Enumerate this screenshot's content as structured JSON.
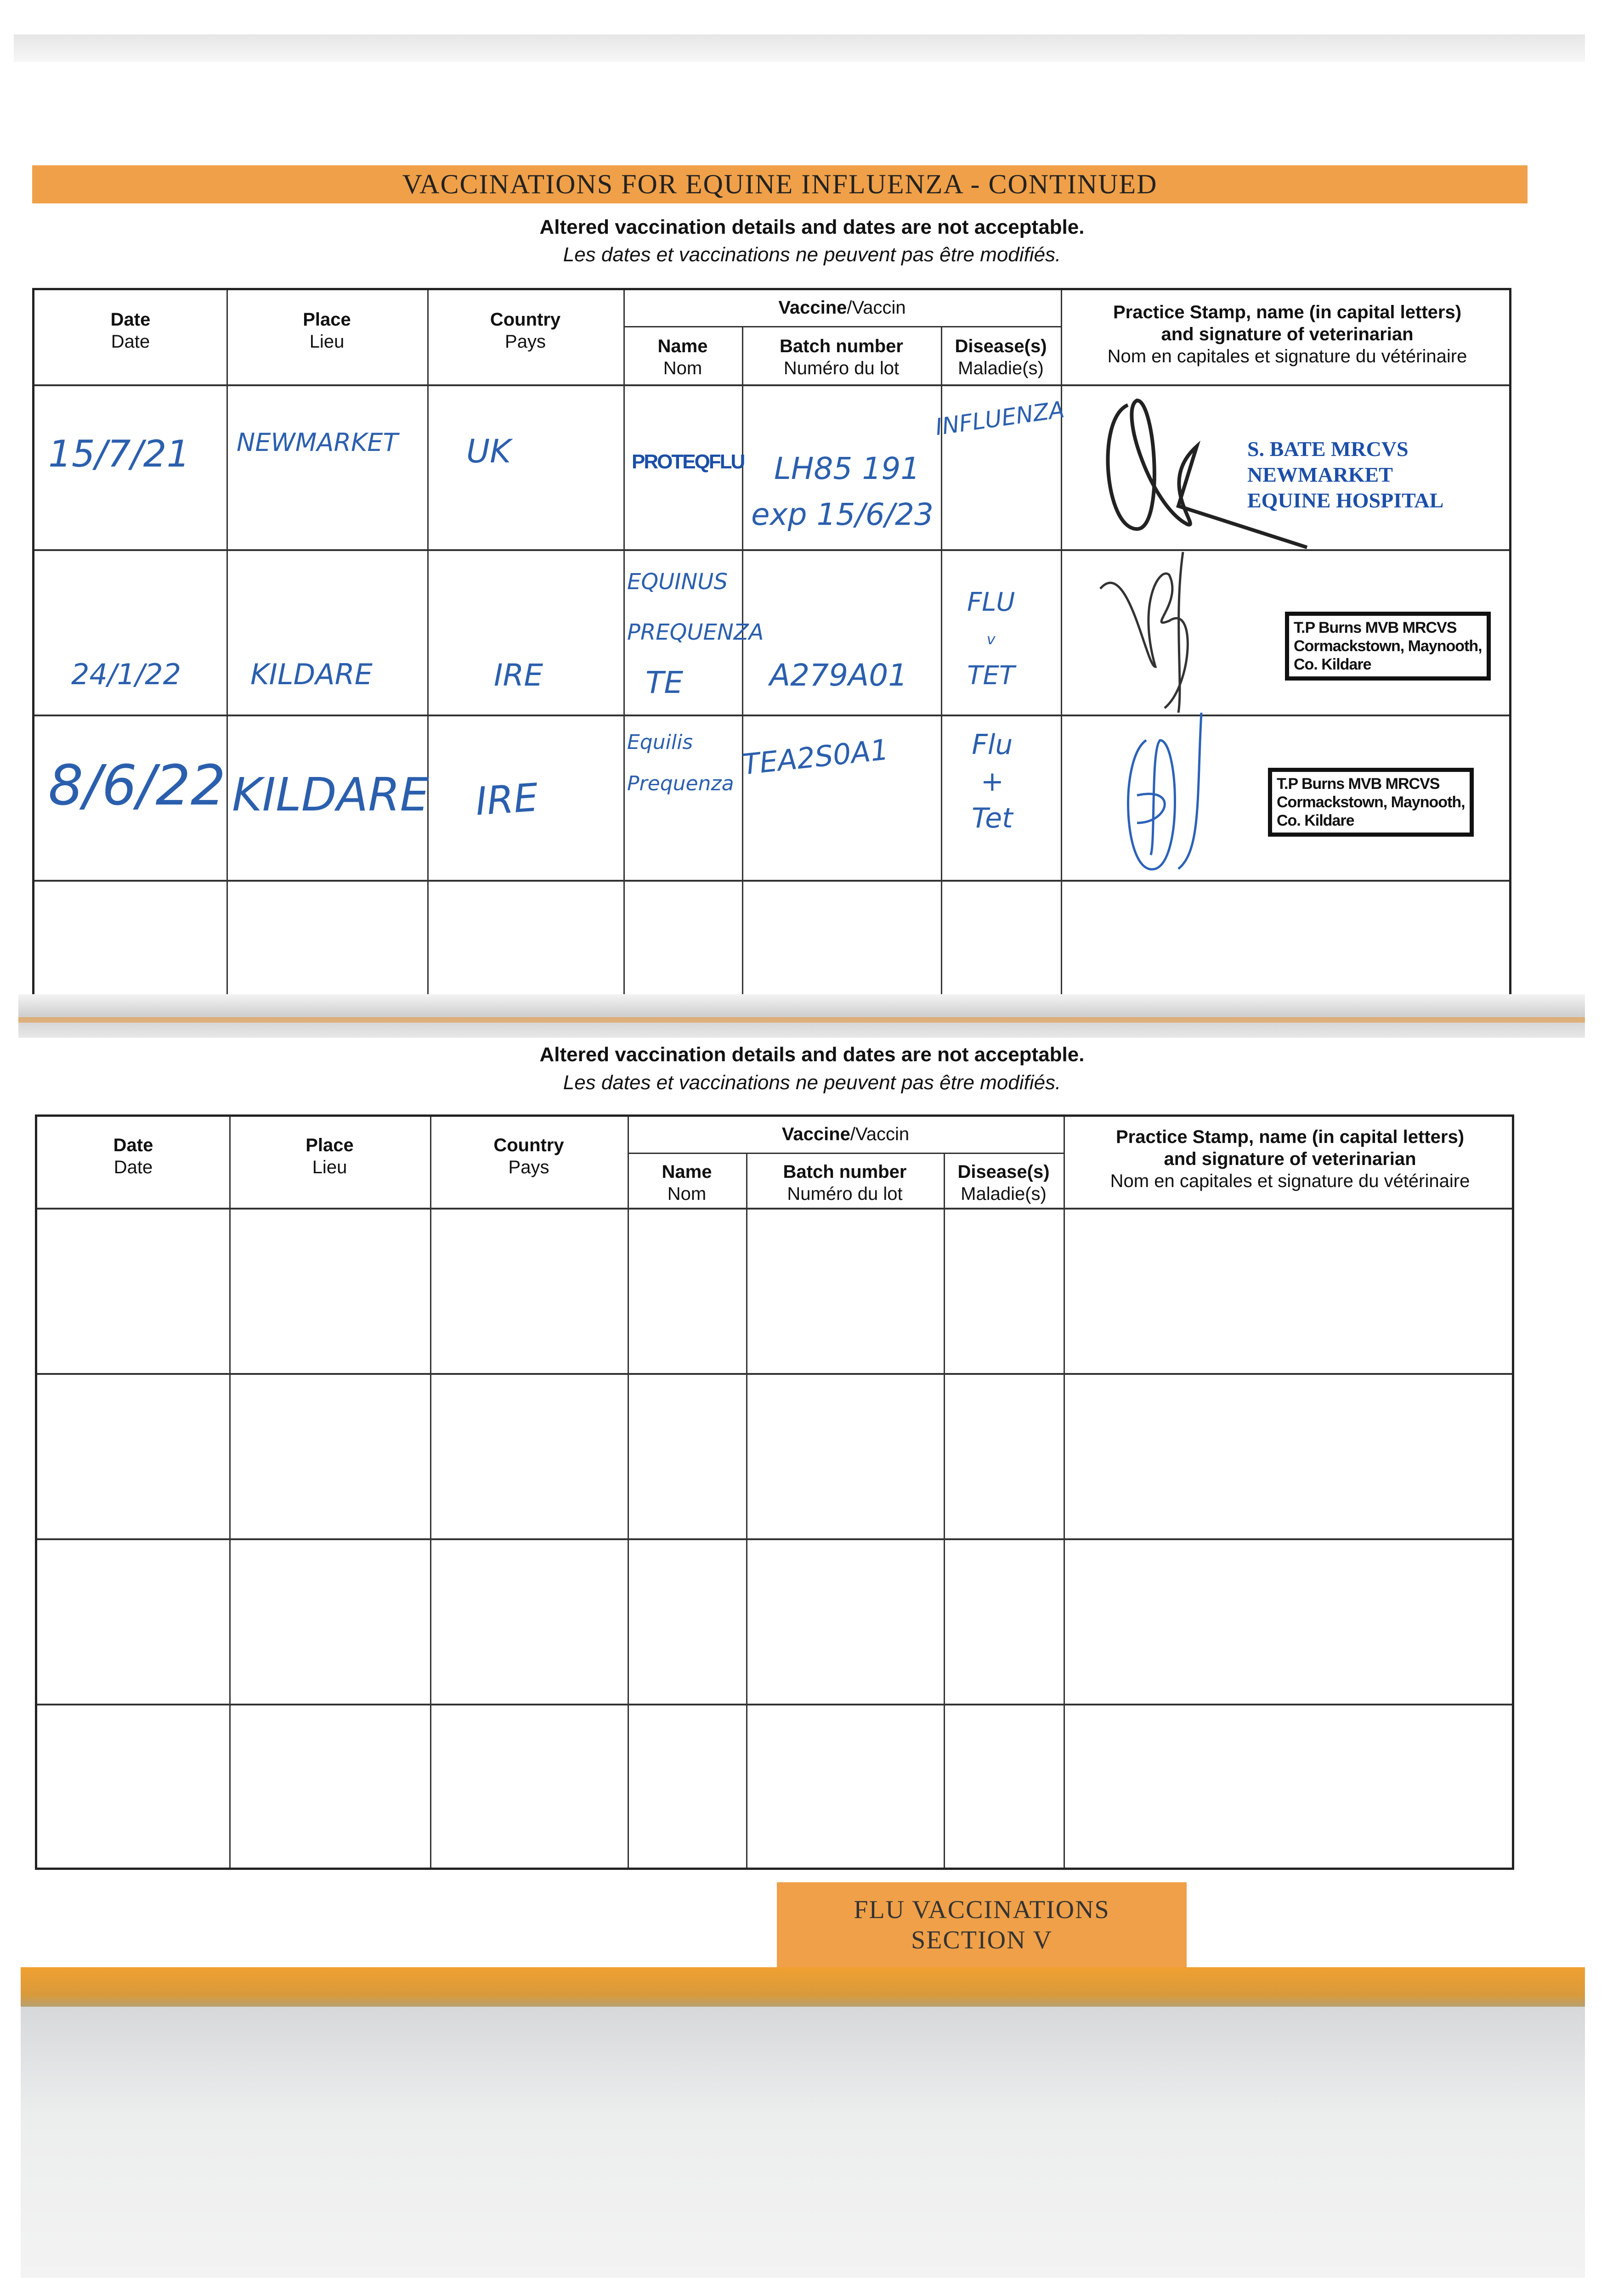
{
  "banner_title": "VACCINATIONS FOR EQUINE INFLUENZA - CONTINUED",
  "notice": {
    "en": "Altered vaccination details and dates are not acceptable.",
    "fr": "Les dates et vaccinations ne peuvent pas être modifiés."
  },
  "headers": {
    "date_en": "Date",
    "date_fr": "Date",
    "place_en": "Place",
    "place_fr": "Lieu",
    "country_en": "Country",
    "country_fr": "Pays",
    "vaccine_en": "Vaccine",
    "vaccine_fr": "/Vaccin",
    "name_en": "Name",
    "name_fr": "Nom",
    "batch_en": "Batch number",
    "batch_fr": "Numéro du lot",
    "disease_en": "Disease(s)",
    "disease_fr": "Maladie(s)",
    "stamp_en1": "Practice Stamp, name (in capital letters)",
    "stamp_en2": "and signature of veterinarian",
    "stamp_fr": "Nom en capitales et signature du vétérinaire"
  },
  "entries": [
    {
      "date": "15/7/21",
      "place": "NEWMARKET",
      "country": "UK",
      "name": "PROTEQFLU",
      "batch": "LH85 191",
      "batch_exp": "exp 15/6/23",
      "disease": "INFLUENZA",
      "stamp": [
        "S. BATE MRCVS",
        "NEWMARKET",
        "EQUINE HOSPITAL"
      ]
    },
    {
      "date": "24/1/22",
      "place": "KILDARE",
      "country": "IRE",
      "name": [
        "EQUINUS",
        "PREQUENZA",
        "TE"
      ],
      "batch": "A279A01",
      "disease": [
        "FLU",
        "v",
        "TET"
      ],
      "stamp": [
        "T.P Burns MVB MRCVS",
        "Cormackstown, Maynooth,",
        "Co. Kildare"
      ]
    },
    {
      "date": "8/6/22",
      "place": "KILDARE",
      "country": "IRE",
      "name": [
        "Equilis",
        "Prequenza"
      ],
      "batch": "TEA2S0A1",
      "disease": [
        "Flu",
        "+",
        "Tet"
      ],
      "stamp": [
        "T.P Burns MVB MRCVS",
        "Cormackstown, Maynooth,",
        "Co. Kildare"
      ]
    }
  ],
  "section_tab": {
    "line1": "FLU VACCINATIONS",
    "line2": "SECTION V"
  },
  "colors": {
    "banner": "#f0a048",
    "ink_blue": "#2b5fae",
    "stamp_blue": "#1c4fa8"
  }
}
